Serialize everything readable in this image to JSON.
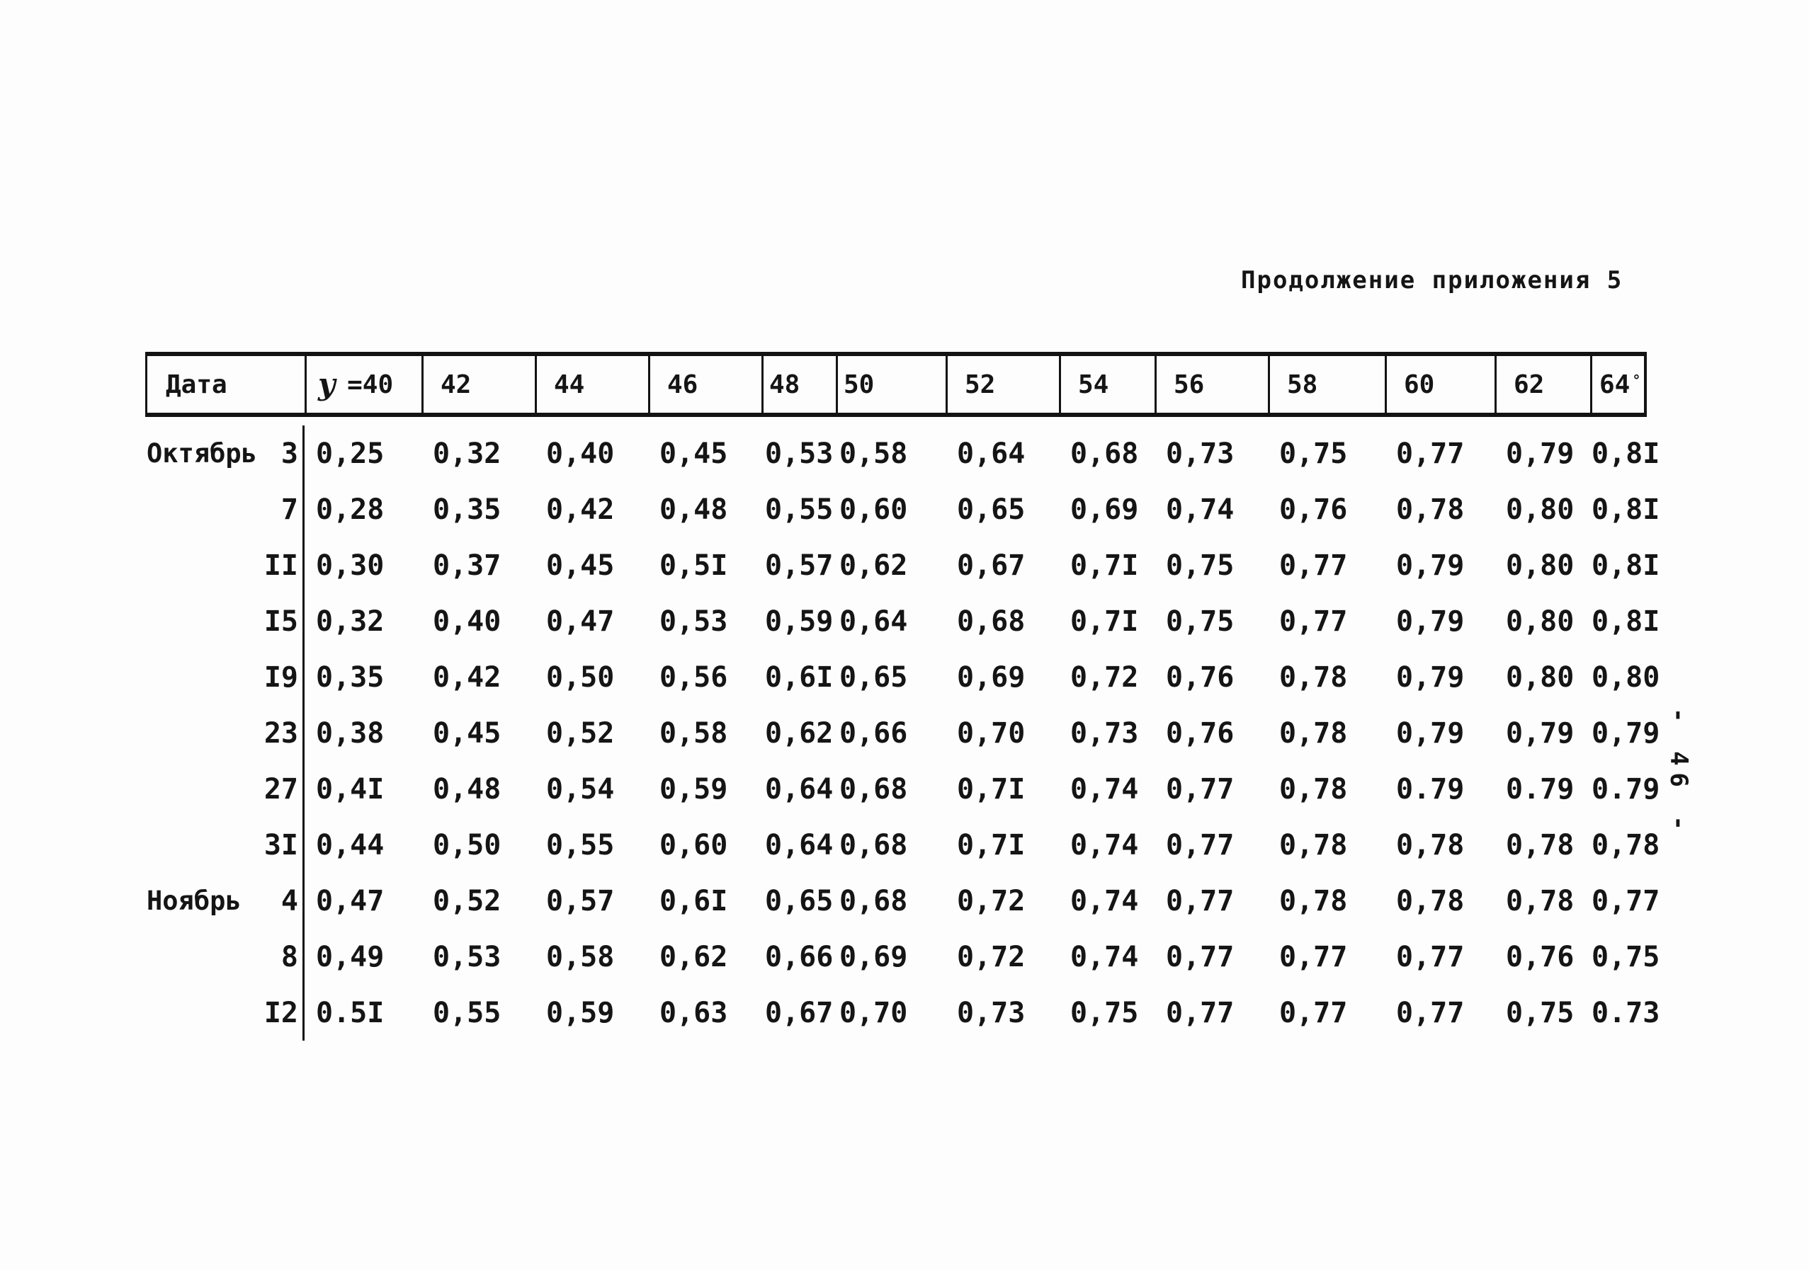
{
  "page": {
    "title": "Продолжение приложения 5",
    "side_page_number": "- 46 -"
  },
  "table": {
    "header": {
      "date_label": "Дата",
      "phi_symbol": "у",
      "phi_value": "=40",
      "columns": [
        "42",
        "44",
        "46",
        "48",
        "50",
        "52",
        "54",
        "56",
        "58",
        "60",
        "62",
        "64"
      ],
      "degree_mark": "°"
    },
    "rows": [
      {
        "month": "Октябрь",
        "day": "3",
        "values": [
          "0,25",
          "0,32",
          "0,40",
          "0,45",
          "0,53",
          "0,58",
          "0,64",
          "0,68",
          "0,73",
          "0,75",
          "0,77",
          "0,79",
          "0,8I"
        ]
      },
      {
        "month": "",
        "day": "7",
        "values": [
          "0,28",
          "0,35",
          "0,42",
          "0,48",
          "0,55",
          "0,60",
          "0,65",
          "0,69",
          "0,74",
          "0,76",
          "0,78",
          "0,80",
          "0,8I"
        ]
      },
      {
        "month": "",
        "day": "II",
        "values": [
          "0,30",
          "0,37",
          "0,45",
          "0,5I",
          "0,57",
          "0,62",
          "0,67",
          "0,7I",
          "0,75",
          "0,77",
          "0,79",
          "0,80",
          "0,8I"
        ]
      },
      {
        "month": "",
        "day": "I5",
        "values": [
          "0,32",
          "0,40",
          "0,47",
          "0,53",
          "0,59",
          "0,64",
          "0,68",
          "0,7I",
          "0,75",
          "0,77",
          "0,79",
          "0,80",
          "0,8I"
        ]
      },
      {
        "month": "",
        "day": "I9",
        "values": [
          "0,35",
          "0,42",
          "0,50",
          "0,56",
          "0,6I",
          "0,65",
          "0,69",
          "0,72",
          "0,76",
          "0,78",
          "0,79",
          "0,80",
          "0,80"
        ]
      },
      {
        "month": "",
        "day": "23",
        "values": [
          "0,38",
          "0,45",
          "0,52",
          "0,58",
          "0,62",
          "0,66",
          "0,70",
          "0,73",
          "0,76",
          "0,78",
          "0,79",
          "0,79",
          "0,79"
        ]
      },
      {
        "month": "",
        "day": "27",
        "values": [
          "0,4I",
          "0,48",
          "0,54",
          "0,59",
          "0,64",
          "0,68",
          "0,7I",
          "0,74",
          "0,77",
          "0,78",
          "0.79",
          "0.79",
          "0.79"
        ]
      },
      {
        "month": "",
        "day": "3I",
        "values": [
          "0,44",
          "0,50",
          "0,55",
          "0,60",
          "0,64",
          "0,68",
          "0,7I",
          "0,74",
          "0,77",
          "0,78",
          "0,78",
          "0,78",
          "0,78"
        ]
      },
      {
        "month": "Ноябрь",
        "day": "4",
        "values": [
          "0,47",
          "0,52",
          "0,57",
          "0,6I",
          "0,65",
          "0,68",
          "0,72",
          "0,74",
          "0,77",
          "0,78",
          "0,78",
          "0,78",
          "0,77"
        ]
      },
      {
        "month": "",
        "day": "8",
        "values": [
          "0,49",
          "0,53",
          "0,58",
          "0,62",
          "0,66",
          "0,69",
          "0,72",
          "0,74",
          "0,77",
          "0,77",
          "0,77",
          "0,76",
          "0,75"
        ]
      },
      {
        "month": "",
        "day": "I2",
        "values": [
          "0.5I",
          "0,55",
          "0,59",
          "0,63",
          "0,67",
          "0,70",
          "0,73",
          "0,75",
          "0,77",
          "0,77",
          "0,77",
          "0,75",
          "0.73"
        ]
      }
    ]
  }
}
